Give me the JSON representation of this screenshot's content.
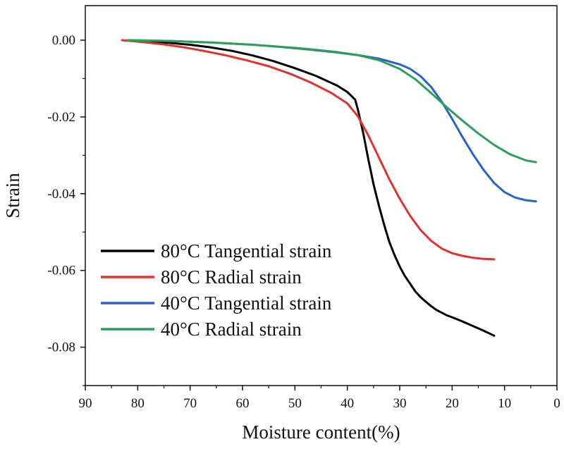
{
  "chart_data": {
    "type": "line",
    "title": "",
    "xlabel": "Moisture content(%)",
    "ylabel": "Strain",
    "xlim": [
      90,
      0
    ],
    "ylim": [
      -0.09,
      0.009
    ],
    "x_ticks": [
      90,
      80,
      70,
      60,
      50,
      40,
      30,
      20,
      10,
      0
    ],
    "x_tick_labels": [
      "90",
      "80",
      "70",
      "60",
      "50",
      "40",
      "30",
      "20",
      "10",
      "0"
    ],
    "y_ticks": [
      0.0,
      -0.02,
      -0.04,
      -0.06,
      -0.08
    ],
    "y_tick_labels": [
      "0.00",
      "-0.02",
      "-0.04",
      "-0.06",
      "-0.08"
    ],
    "grid": false,
    "legend_position": "bottom-left",
    "series": [
      {
        "name": "80°C Tangential strain",
        "color": "#000000",
        "x": [
          82,
          78,
          74,
          70,
          66,
          62,
          58,
          54,
          50,
          46,
          42,
          40,
          38.5,
          38,
          37,
          36,
          35,
          34,
          33,
          32,
          31,
          30,
          29,
          28,
          27,
          26,
          25,
          24,
          23,
          22,
          21,
          20,
          18,
          16,
          14,
          12
        ],
        "y": [
          0.0,
          -0.0003,
          -0.0007,
          -0.0012,
          -0.0019,
          -0.0028,
          -0.004,
          -0.0055,
          -0.0073,
          -0.0093,
          -0.0118,
          -0.0135,
          -0.0155,
          -0.018,
          -0.024,
          -0.031,
          -0.0375,
          -0.043,
          -0.048,
          -0.0525,
          -0.056,
          -0.059,
          -0.0615,
          -0.0635,
          -0.0655,
          -0.067,
          -0.0682,
          -0.0693,
          -0.0703,
          -0.071,
          -0.0717,
          -0.0722,
          -0.0733,
          -0.0745,
          -0.0757,
          -0.077
        ]
      },
      {
        "name": "80°C Radial strain",
        "color": "#e0312d",
        "x": [
          83,
          79,
          75,
          71,
          67,
          63,
          59,
          55,
          51,
          47,
          43,
          40,
          38,
          36,
          34,
          32,
          30,
          28,
          26,
          24,
          22,
          20,
          18,
          16,
          14,
          12
        ],
        "y": [
          0.0,
          -0.0005,
          -0.0011,
          -0.0019,
          -0.0029,
          -0.004,
          -0.0053,
          -0.0068,
          -0.0087,
          -0.011,
          -0.0138,
          -0.0165,
          -0.0198,
          -0.0248,
          -0.0305,
          -0.0362,
          -0.0413,
          -0.0458,
          -0.0495,
          -0.0523,
          -0.0543,
          -0.0555,
          -0.0562,
          -0.0567,
          -0.057,
          -0.0571
        ]
      },
      {
        "name": "40°C Tangential strain",
        "color": "#2a62c9",
        "x": [
          82,
          78,
          74,
          70,
          66,
          62,
          58,
          54,
          50,
          46,
          42,
          38,
          34,
          30,
          28,
          26,
          24,
          22,
          20,
          18,
          16,
          14,
          12,
          10,
          8,
          6,
          4
        ],
        "y": [
          0.0,
          -0.0001,
          -0.0002,
          -0.0004,
          -0.0006,
          -0.0009,
          -0.0012,
          -0.0016,
          -0.0021,
          -0.0026,
          -0.0032,
          -0.0039,
          -0.0048,
          -0.0063,
          -0.0075,
          -0.0094,
          -0.0122,
          -0.016,
          -0.0205,
          -0.0253,
          -0.0298,
          -0.0338,
          -0.0372,
          -0.0396,
          -0.041,
          -0.0417,
          -0.042
        ]
      },
      {
        "name": "40°C Radial strain",
        "color": "#2e9e5b",
        "x": [
          82,
          78,
          74,
          70,
          66,
          62,
          58,
          54,
          50,
          46,
          42,
          38,
          34,
          30,
          27,
          24,
          21,
          18,
          15,
          12,
          9,
          6,
          4
        ],
        "y": [
          0.0,
          -0.0001,
          -0.0002,
          -0.0004,
          -0.0006,
          -0.0009,
          -0.0012,
          -0.0016,
          -0.002,
          -0.0025,
          -0.0031,
          -0.0039,
          -0.0052,
          -0.0075,
          -0.0102,
          -0.0138,
          -0.0175,
          -0.021,
          -0.0243,
          -0.0273,
          -0.0297,
          -0.0313,
          -0.0318
        ]
      }
    ]
  }
}
